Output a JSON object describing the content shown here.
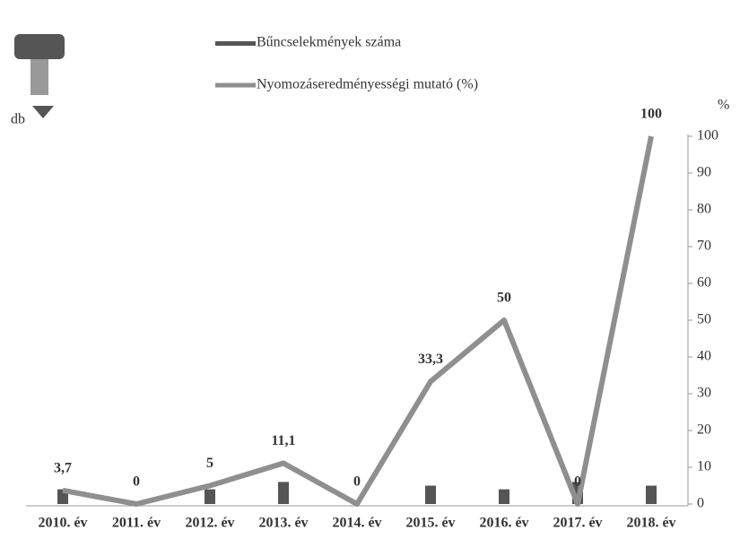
{
  "chart_data": {
    "type": "line",
    "categories": [
      "2010. év",
      "2011. év",
      "2012. év",
      "2013. év",
      "2014. év",
      "2015. év",
      "2016. év",
      "2017. év",
      "2018. év"
    ],
    "ylabel": "db",
    "y2label": "%",
    "ylim": [
      0,
      10
    ],
    "y2lim": [
      0,
      100
    ],
    "y2ticks": [
      0,
      10,
      20,
      30,
      40,
      50,
      60,
      70,
      80,
      90,
      100
    ],
    "series": [
      {
        "name": "Bűncselekmények száma",
        "color": "#555555",
        "type": "bar",
        "values": [
          0.4,
          0,
          0.4,
          0.6,
          0,
          0.5,
          0.4,
          0.6,
          0.5
        ]
      },
      {
        "name": "Nyomozáseredményességi mutató (%)",
        "color": "#8f8f8f",
        "axis": "y2",
        "values": [
          3.7,
          0,
          5,
          11.1,
          0,
          33.3,
          50,
          0,
          100
        ],
        "value_labels": [
          "3,7",
          "0",
          "5",
          "11,1",
          "0",
          "33,3",
          "50",
          "0",
          "100"
        ]
      }
    ]
  }
}
